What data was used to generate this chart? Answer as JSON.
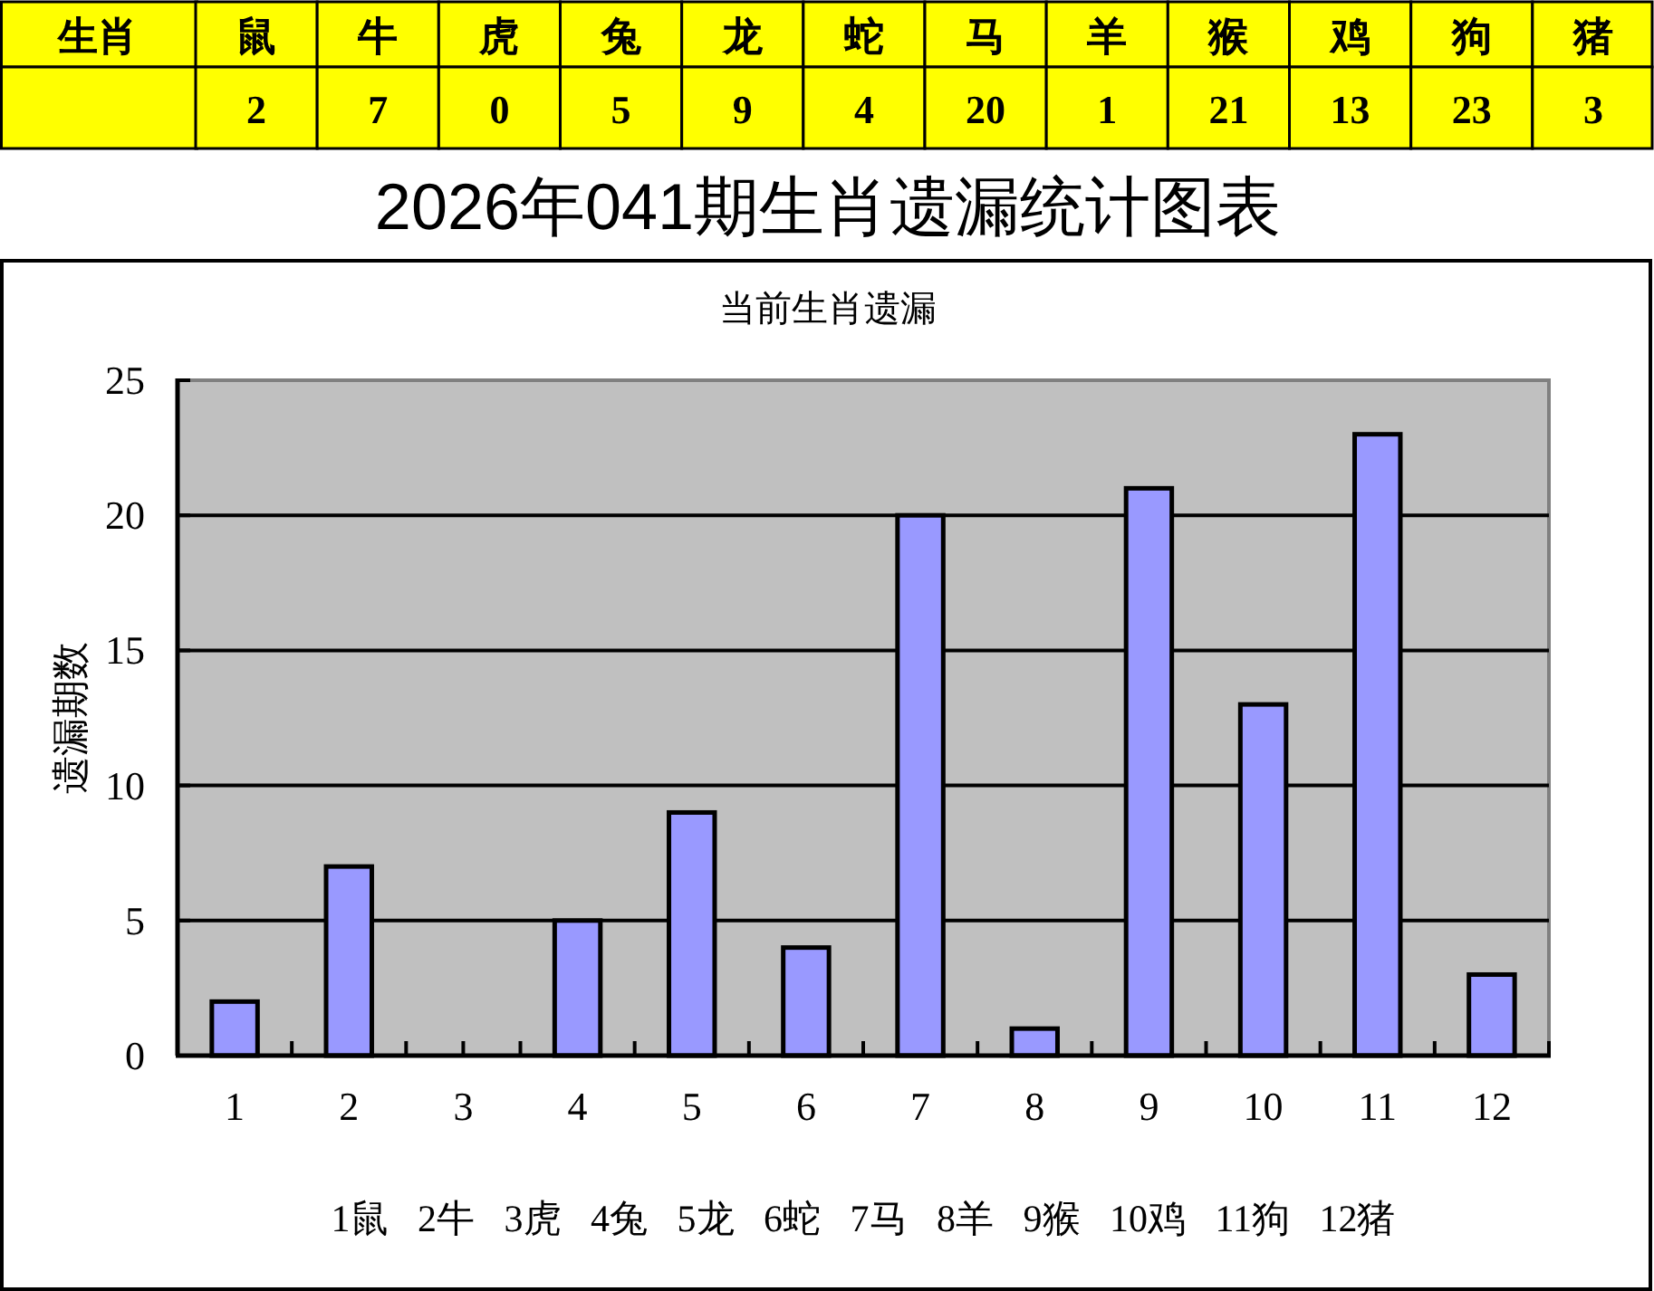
{
  "chart_data": [
    {
      "type": "other",
      "xlabel": "生肖",
      "categories": [
        "鼠",
        "牛",
        "虎",
        "兔",
        "龙",
        "蛇",
        "马",
        "羊",
        "猴",
        "鸡",
        "狗",
        "猪"
      ],
      "values": [
        2,
        7,
        0,
        5,
        9,
        4,
        20,
        1,
        21,
        13,
        23,
        3
      ],
      "color": "#ffff00",
      "data_labels": true
    },
    {
      "type": "bar",
      "title": "2026年041期生肖遗漏统计图表",
      "subtitle": "当前生肖遗漏",
      "ylabel": "遗漏期数",
      "x": [
        1,
        2,
        3,
        4,
        5,
        6,
        7,
        8,
        9,
        10,
        11,
        12
      ],
      "values": [
        2,
        7,
        0,
        5,
        9,
        4,
        20,
        1,
        21,
        13,
        23,
        3
      ],
      "color": "#9999ff",
      "xlim": [
        0.5,
        12.5
      ],
      "xticks": [
        1,
        {
          "value": 1.5,
          "label": null
        },
        2,
        {
          "value": 2.5,
          "label": null
        },
        3,
        {
          "value": 3.5,
          "label": null
        },
        4,
        {
          "value": 4.5,
          "label": null
        },
        5,
        {
          "value": 5.5,
          "label": null
        },
        6,
        {
          "value": 6.5,
          "label": null
        },
        7,
        {
          "value": 7.5,
          "label": null
        },
        8,
        {
          "value": 8.5,
          "label": null
        },
        9,
        {
          "value": 9.5,
          "label": null
        },
        10,
        {
          "value": 10.5,
          "label": null
        },
        11,
        {
          "value": 11.5,
          "label": null
        },
        12,
        {
          "value": 12.5,
          "label": null
        }
      ],
      "ylim": [
        0,
        25
      ],
      "yticks": [
        0,
        5,
        10,
        15,
        20,
        25
      ],
      "grid": "y",
      "annotations": [
        "1鼠 2牛 3虎 4兔 5龙 6蛇 7马 8羊 9猴 10鸡 11狗 12猪"
      ]
    }
  ]
}
